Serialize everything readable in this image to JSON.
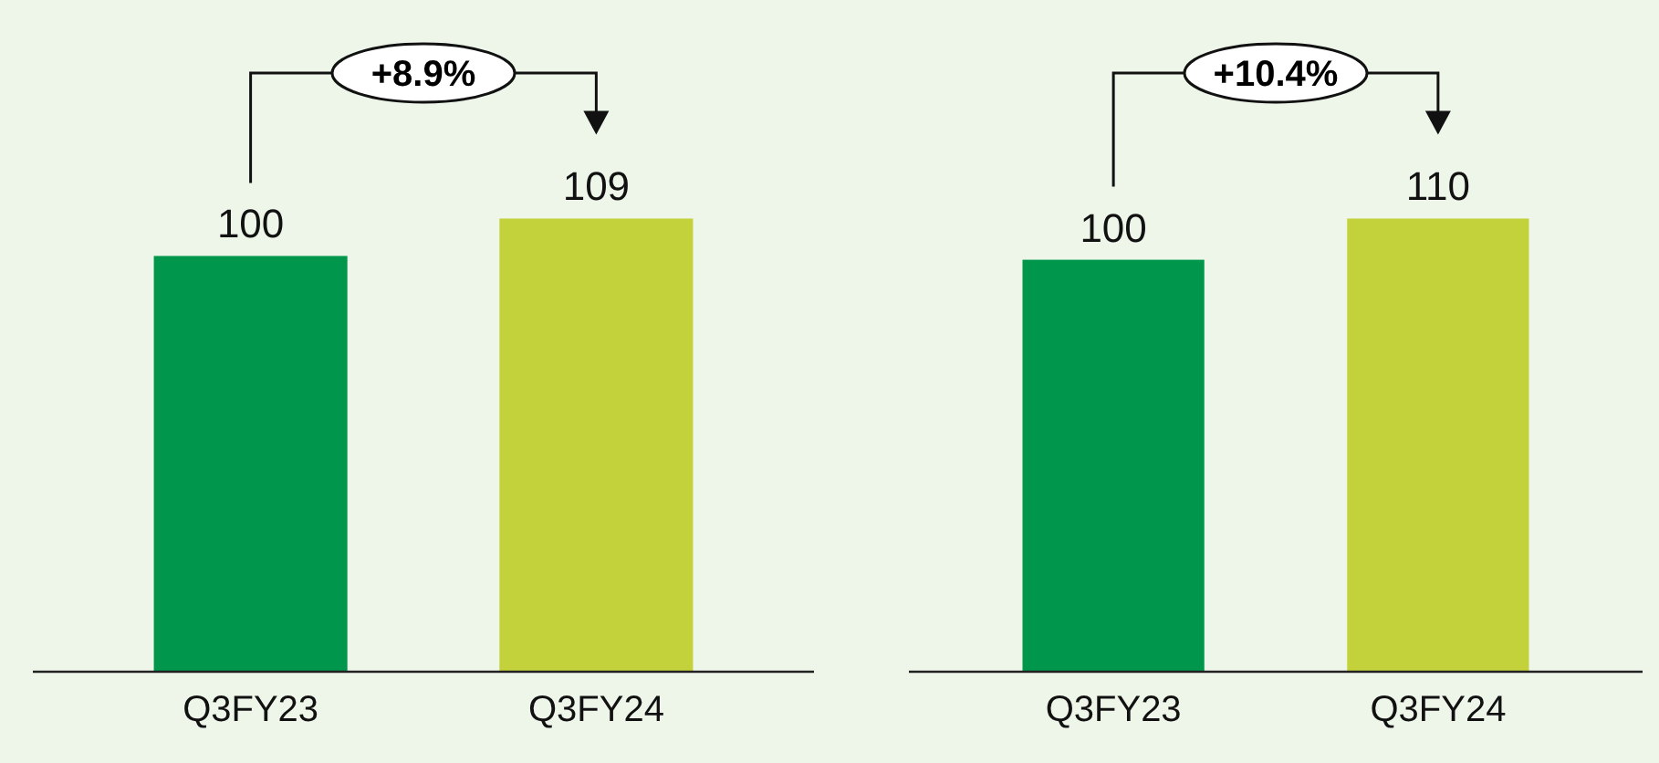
{
  "chart_data": [
    {
      "type": "bar",
      "categories": [
        "Q3FY23",
        "Q3FY24"
      ],
      "values": [
        100,
        109
      ],
      "colors": [
        "#00964b",
        "#c3d13b"
      ],
      "data_labels": true,
      "tick_labels": "x",
      "annotations": [
        "+8.9%"
      ]
    },
    {
      "type": "bar",
      "categories": [
        "Q3FY23",
        "Q3FY24"
      ],
      "values": [
        100,
        110
      ],
      "colors": [
        "#00964b",
        "#c3d13b"
      ],
      "data_labels": true,
      "tick_labels": "x",
      "annotations": [
        "+10.4%"
      ]
    }
  ]
}
